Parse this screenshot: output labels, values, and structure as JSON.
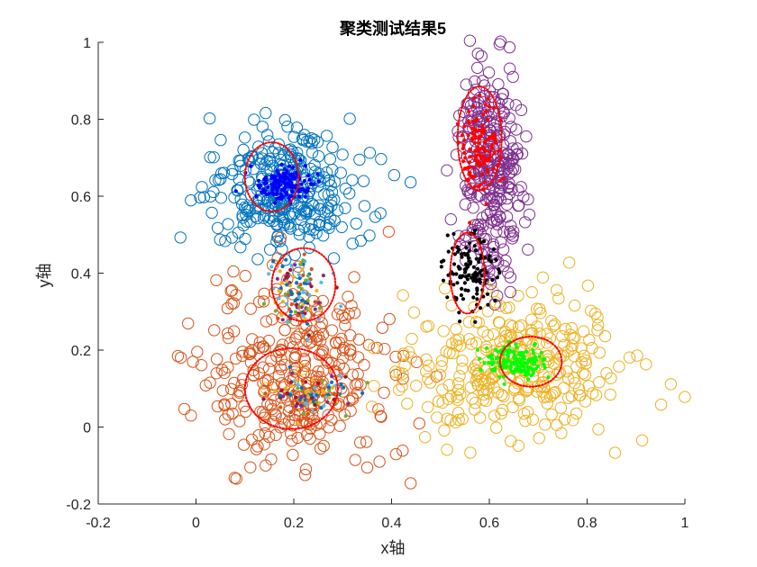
{
  "chart_data": {
    "type": "scatter",
    "title": "聚类测试结果5",
    "xlabel": "x轴",
    "ylabel": "y轴",
    "xlim": [
      -0.2,
      1
    ],
    "ylim": [
      -0.2,
      1
    ],
    "xticks": [
      "-0.2",
      "0",
      "0.2",
      "0.4",
      "0.6",
      "0.8",
      "1"
    ],
    "yticks": [
      "-0.2",
      "0",
      "0.2",
      "0.4",
      "0.6",
      "0.8",
      "1"
    ],
    "grid": false,
    "legend": "none",
    "series": [
      {
        "color": "#0072BD",
        "marker": "open-circle",
        "center": [
          0.18,
          0.62
        ],
        "spread": [
          0.075,
          0.075
        ],
        "count": 320
      },
      {
        "color": "#D95319",
        "marker": "open-circle",
        "center": [
          0.2,
          0.14
        ],
        "spread": [
          0.1,
          0.12
        ],
        "count": 340
      },
      {
        "color": "#EDB120",
        "marker": "open-circle",
        "center": [
          0.64,
          0.15
        ],
        "spread": [
          0.12,
          0.09
        ],
        "count": 330
      },
      {
        "color": "#7E2F8E",
        "marker": "open-circle",
        "center": [
          0.6,
          0.68
        ],
        "spread": [
          0.035,
          0.14
        ],
        "count": 300
      }
    ],
    "highlighted_clusters": [
      {
        "color": "#0000FF",
        "marker": "dot",
        "center": [
          0.18,
          0.63
        ],
        "spread": [
          0.03,
          0.02
        ],
        "count": 150
      },
      {
        "color": "#FF0000",
        "marker": "dot",
        "center": [
          0.58,
          0.72
        ],
        "spread": [
          0.02,
          0.06
        ],
        "count": 130
      },
      {
        "color": "#000000",
        "marker": "dot",
        "center": [
          0.56,
          0.4
        ],
        "spread": [
          0.025,
          0.05
        ],
        "count": 130
      },
      {
        "color": "#00FF00",
        "marker": "dot",
        "center": [
          0.65,
          0.17
        ],
        "spread": [
          0.03,
          0.02
        ],
        "count": 150
      },
      {
        "color": "mixed",
        "marker": "dot",
        "center": [
          0.21,
          0.35
        ],
        "spread": [
          0.03,
          0.04
        ],
        "count": 120
      },
      {
        "color": "mixed",
        "marker": "dot",
        "center": [
          0.24,
          0.08
        ],
        "spread": [
          0.04,
          0.025
        ],
        "count": 120
      }
    ],
    "ellipses": [
      {
        "center": [
          0.155,
          0.65
        ],
        "radii": [
          0.055,
          0.09
        ],
        "color": "#FF0000",
        "style": "dotted"
      },
      {
        "center": [
          0.58,
          0.75
        ],
        "radii": [
          0.045,
          0.135
        ],
        "color": "#FF0000",
        "style": "dotted"
      },
      {
        "center": [
          0.555,
          0.4
        ],
        "radii": [
          0.035,
          0.105
        ],
        "color": "#FF0000",
        "style": "dotted"
      },
      {
        "center": [
          0.685,
          0.17
        ],
        "radii": [
          0.063,
          0.065
        ],
        "color": "#FF0000",
        "style": "dotted"
      },
      {
        "center": [
          0.22,
          0.37
        ],
        "radii": [
          0.065,
          0.095
        ],
        "color": "#FF0000",
        "style": "dotted"
      },
      {
        "center": [
          0.195,
          0.1
        ],
        "radii": [
          0.095,
          0.105
        ],
        "color": "#FF0000",
        "style": "dotted"
      }
    ]
  }
}
